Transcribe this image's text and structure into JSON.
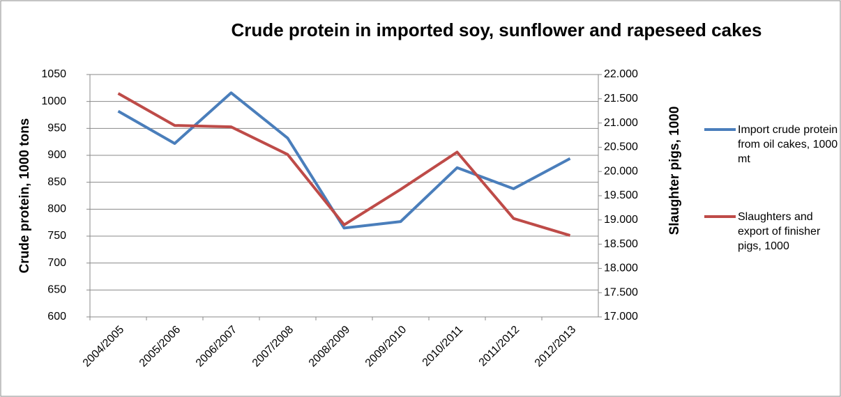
{
  "chart_data": {
    "type": "line",
    "title": "Crude protein in imported soy, sunflower and rapeseed cakes",
    "y_label": "Crude protein, 1000 tons",
    "y2_label": "Slaughter pigs, 1000",
    "categories": [
      "2004/2005",
      "2005/2006",
      "2006/2007",
      "2007/2008",
      "2008/2009",
      "2009/2010",
      "2010/2011",
      "2011/2012",
      "2012/2013"
    ],
    "series": [
      {
        "name": "Import crude protein from oil cakes, 1000 mt",
        "color": "#4a7ebb",
        "values": [
          982,
          922,
          1016,
          932,
          765,
          777,
          877,
          838,
          894
        ]
      },
      {
        "name": "Slaughters and export of finisher pigs, 1000",
        "color": "#be4b48",
        "axis": "y2",
        "values": [
          21610,
          20950,
          20920,
          20350,
          18900,
          19630,
          20400,
          19030,
          18680
        ]
      }
    ],
    "ylim": [
      600,
      1050
    ],
    "yticks": [
      600,
      650,
      700,
      750,
      800,
      850,
      900,
      950,
      1000,
      1050
    ],
    "y2lim": [
      17000,
      22000
    ],
    "y2ticks": [
      {
        "value": 17000,
        "label": "17.000"
      },
      {
        "value": 17500,
        "label": "17.500"
      },
      {
        "value": 18000,
        "label": "18.000"
      },
      {
        "value": 18500,
        "label": "18.500"
      },
      {
        "value": 19000,
        "label": "19.000"
      },
      {
        "value": 19500,
        "label": "19.500"
      },
      {
        "value": 20000,
        "label": "20.000"
      },
      {
        "value": 20500,
        "label": "20.500"
      },
      {
        "value": 21000,
        "label": "21.000"
      },
      {
        "value": 21500,
        "label": "21.500"
      },
      {
        "value": 22000,
        "label": "22.000"
      }
    ],
    "grid": true,
    "legend": "right"
  }
}
